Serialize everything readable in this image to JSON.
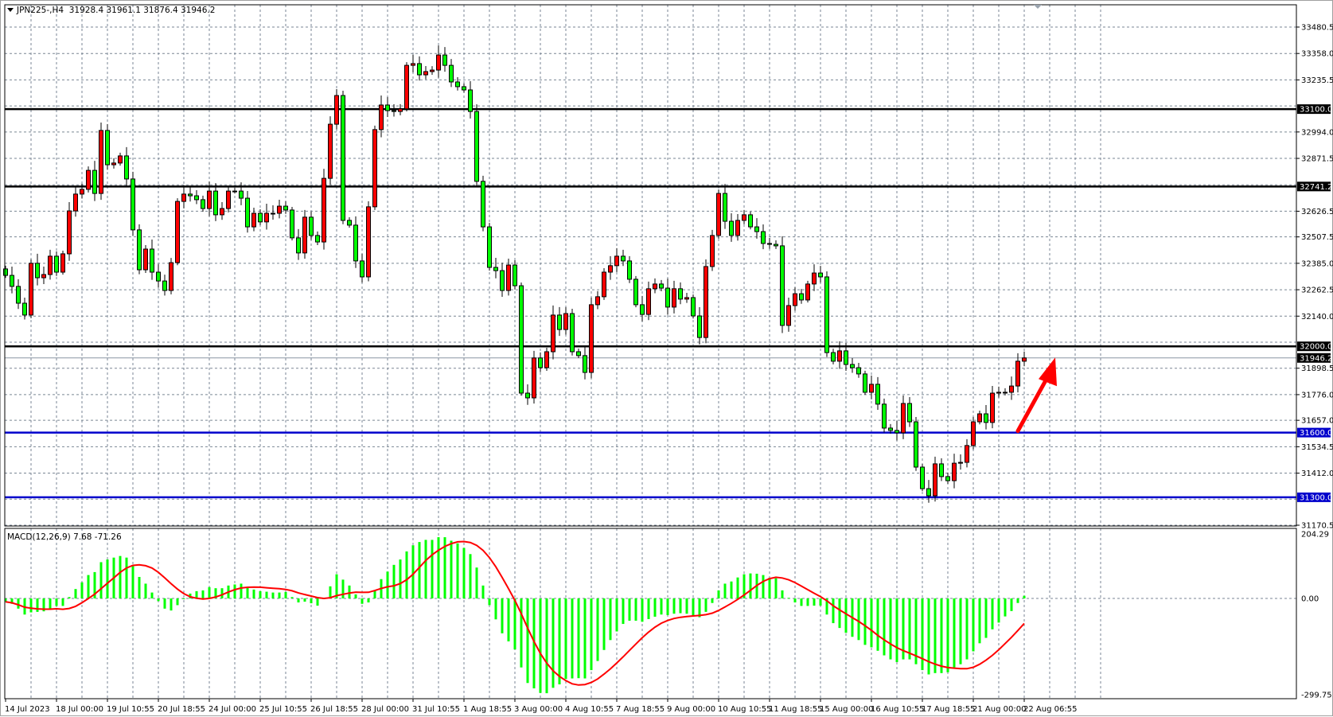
{
  "header": {
    "symbol": "JPN225-,H4",
    "ohlc": "31928.4 31961.1 31876.4 31946.2"
  },
  "colors": {
    "bull_candle": "#ff0000",
    "bear_candle": "#00ff00",
    "support_lines": "#0000cc",
    "resistance_lines": "#000000",
    "macd_histogram": "#00ff00",
    "macd_signal": "#ff0000",
    "arrow": "#ff0000",
    "grid": "#7a8694"
  },
  "chart_data": [
    {
      "type": "candlestick",
      "title": "JPN225-,H4",
      "timeframe": "H4",
      "ylim": [
        31170.5,
        33480.5
      ],
      "y_ticks": [
        "33480.5",
        "33358.0",
        "33235.5",
        "32994.0",
        "32871.5",
        "32626.5",
        "32507.5",
        "32385.0",
        "32262.5",
        "32140.0",
        "31898.5",
        "31776.0",
        "31657.0",
        "31534.5",
        "31412.0",
        "31170.5"
      ],
      "x_tick_labels": [
        "14 Jul 2023",
        "18 Jul 00:00",
        "19 Jul 10:55",
        "20 Jul 18:55",
        "24 Jul 00:00",
        "25 Jul 10:55",
        "26 Jul 18:55",
        "28 Jul 00:00",
        "31 Jul 10:55",
        "1 Aug 18:55",
        "3 Aug 00:00",
        "4 Aug 10:55",
        "7 Aug 18:55",
        "9 Aug 00:00",
        "10 Aug 10:55",
        "11 Aug 18:55",
        "15 Aug 00:00",
        "16 Aug 10:55",
        "17 Aug 18:55",
        "21 Aug 00:00",
        "22 Aug 06:55"
      ],
      "bars_per_x_label": 8,
      "first_open": 32359,
      "closes": [
        32329,
        32278,
        32200,
        32145,
        32385,
        32318,
        32333,
        32418,
        32344,
        32429,
        32628,
        32706,
        32728,
        32816,
        32709,
        33001,
        32842,
        32850,
        32883,
        32776,
        32540,
        32355,
        32451,
        32344,
        32303,
        32259,
        32388,
        32672,
        32706,
        32698,
        32680,
        32639,
        32720,
        32610,
        32639,
        32720,
        32720,
        32687,
        32554,
        32617,
        32577,
        32617,
        32617,
        32650,
        32632,
        32503,
        32433,
        32599,
        32514,
        32484,
        32779,
        33030,
        33163,
        32584,
        32562,
        32396,
        32322,
        32647,
        33005,
        33119,
        33093,
        33089,
        33101,
        33303,
        33311,
        33259,
        33274,
        33281,
        33351,
        33303,
        33226,
        33204,
        33189,
        33089,
        32765,
        32554,
        32366,
        32351,
        32259,
        32377,
        32281,
        31783,
        31761,
        31946,
        31901,
        31975,
        32145,
        32078,
        32152,
        31975,
        31957,
        31879,
        32193,
        32230,
        32344,
        32374,
        32418,
        32396,
        32311,
        32193,
        32148,
        32267,
        32289,
        32270,
        32182,
        32267,
        32219,
        32226,
        32141,
        32041,
        32370,
        32514,
        32709,
        32580,
        32514,
        32584,
        32610,
        32554,
        32532,
        32477,
        32473,
        32466,
        32097,
        32189,
        32244,
        32215,
        32289,
        32340,
        32322,
        31971,
        31931,
        31979,
        31916,
        31901,
        31872,
        31787,
        31824,
        31732,
        31621,
        31610,
        31599,
        31735,
        31650,
        31440,
        31340,
        31307,
        31455,
        31396,
        31377,
        31458,
        31462,
        31540,
        31650,
        31687,
        31647,
        31783,
        31787,
        31787,
        31816,
        31931,
        31946.2
      ],
      "horizontal_lines": [
        {
          "price": 33100.0,
          "label": "33100.0",
          "kind": "resistance"
        },
        {
          "price": 32741.2,
          "label": "32741.2",
          "kind": "resistance"
        },
        {
          "price": 32000.0,
          "label": "32000.0",
          "kind": "resistance"
        },
        {
          "price": 31600.0,
          "label": "31600.0",
          "kind": "support"
        },
        {
          "price": 31300.0,
          "label": "31300.0",
          "kind": "support"
        }
      ],
      "bid_line": {
        "price": 31946.2,
        "label": "31946.2"
      },
      "annotation": {
        "type": "arrow",
        "direction": "up",
        "from_price": 31600,
        "to_price": 32000
      }
    },
    {
      "type": "bar",
      "indicator": "MACD",
      "label": "MACD(12,26,9) 7.68 -71.26",
      "ylim": [
        -299.75,
        204.29
      ],
      "y_ticks": [
        "204.29",
        "0.00",
        "-299.75"
      ],
      "signal_period": 9,
      "histogram": [
        -10,
        -15.7,
        -29.8,
        -47,
        -40.7,
        -39.2,
        -37.6,
        -29.8,
        -21.9,
        -21.9,
        3.9,
        27.4,
        47,
        68.2,
        76.8,
        105.8,
        113.6,
        119.1,
        123.8,
        119.1,
        94,
        62.7,
        43.1,
        17.2,
        -7.8,
        -29.8,
        -35.2,
        -19.6,
        0,
        14.1,
        21.2,
        23.5,
        32.9,
        29.8,
        29.8,
        37.6,
        40.7,
        43.1,
        32.9,
        25.9,
        21.2,
        19.6,
        17.2,
        17.2,
        18.8,
        3.9,
        -11.7,
        -9.4,
        -14.1,
        -21.1,
        0,
        35.3,
        70.5,
        54.8,
        37.6,
        11.8,
        -15.7,
        -11.7,
        23.5,
        56.4,
        78.3,
        97.9,
        113.6,
        137.1,
        155.1,
        164.5,
        170.8,
        170.8,
        178.6,
        178.6,
        168.4,
        160.6,
        147.3,
        129.3,
        90.1,
        37.6,
        -19.6,
        -61.1,
        -101.8,
        -125.3,
        -148.8,
        -201.3,
        -246.7,
        -262.4,
        -275.7,
        -276.5,
        -260.8,
        -250.7,
        -235,
        -233.4,
        -232.6,
        -233.4,
        -209.1,
        -182.5,
        -150.4,
        -121.4,
        -96.3,
        -74.4,
        -65,
        -65,
        -68.1,
        -60.3,
        -53.3,
        -47,
        -48.6,
        -44.6,
        -43.1,
        -44.6,
        -50.9,
        -54.8,
        -39.2,
        -13.3,
        23.5,
        43.1,
        49.4,
        61.1,
        70.5,
        72.9,
        72.1,
        68.2,
        60.3,
        58.8,
        23.5,
        1.6,
        -11.7,
        -21.9,
        -21.9,
        -21.1,
        -21.1,
        -47,
        -72.1,
        -86.2,
        -100.3,
        -112,
        -121.4,
        -135.5,
        -142.6,
        -152.7,
        -166.1,
        -177.8,
        -185.6,
        -177.8,
        -177.8,
        -191.9,
        -209.1,
        -221.7,
        -217.8,
        -217.8,
        -215.4,
        -201.3,
        -191.9,
        -177.8,
        -154.3,
        -130.8,
        -115.1,
        -90.1,
        -70.5,
        -52.5,
        -36.8,
        -13.3,
        7.68
      ]
    }
  ]
}
